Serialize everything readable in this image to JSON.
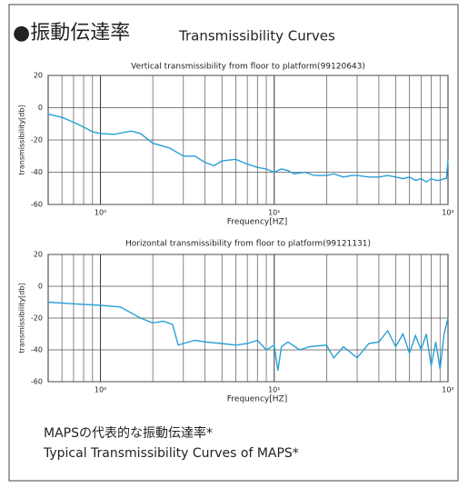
{
  "header": {
    "title": "●振動伝達率",
    "subtitle": "Transmissibility Curves"
  },
  "chart_data": [
    {
      "type": "line",
      "title": "Vertical transmissibility from floor to platform(99120643)",
      "x_label": "Frequency[HZ]",
      "y_label": "transmissibility[db]",
      "color": "#2a9fd6",
      "log_x": true,
      "grid": true,
      "xlim": [
        0.5,
        100
      ],
      "ylim": [
        -60,
        20
      ],
      "xticks": [
        {
          "value": 1,
          "label": "10⁰"
        },
        {
          "value": 10,
          "label": "10¹"
        },
        {
          "value": 100,
          "label": "10²"
        }
      ],
      "x_minor_grid": [
        0.6,
        0.7,
        0.8,
        0.9,
        2,
        3,
        4,
        5,
        6,
        7,
        8,
        9,
        20,
        30,
        40,
        50,
        60,
        70,
        80,
        90
      ],
      "yticks": [
        -60,
        -40,
        -20,
        0,
        20
      ],
      "x": [
        0.5,
        0.6,
        0.7,
        0.8,
        0.9,
        1.0,
        1.2,
        1.5,
        1.7,
        2,
        2.5,
        3,
        3.5,
        4,
        4.5,
        5,
        6,
        7,
        8,
        9,
        10,
        11,
        12,
        13,
        15,
        17,
        20,
        22,
        25,
        28,
        30,
        35,
        40,
        45,
        50,
        55,
        60,
        65,
        70,
        75,
        80,
        85,
        90,
        95,
        98,
        100
      ],
      "values": [
        -4,
        -6,
        -9,
        -12,
        -15,
        -16,
        -16.5,
        -14.5,
        -16,
        -22,
        -25,
        -30,
        -30,
        -34,
        -36,
        -33,
        -32,
        -35,
        -37,
        -38,
        -40,
        -38,
        -39,
        -41,
        -40,
        -42,
        -42,
        -41,
        -43,
        -42,
        -42,
        -43,
        -43,
        -42,
        -43,
        -44,
        -43,
        -45,
        -44,
        -46,
        -44,
        -45,
        -45,
        -44,
        -44,
        -32
      ]
    },
    {
      "type": "line",
      "title": "Horizontal transmissibility from floor to platform(99121131)",
      "x_label": "Frequency[HZ]",
      "y_label": "transmissibility[db]",
      "color": "#2a9fd6",
      "log_x": true,
      "grid": true,
      "xlim": [
        0.5,
        100
      ],
      "ylim": [
        -60,
        20
      ],
      "xticks": [
        {
          "value": 1,
          "label": "10⁰"
        },
        {
          "value": 10,
          "label": "10¹"
        },
        {
          "value": 100,
          "label": "10²"
        }
      ],
      "x_minor_grid": [
        0.6,
        0.7,
        0.8,
        0.9,
        2,
        3,
        4,
        5,
        6,
        7,
        8,
        9,
        20,
        30,
        40,
        50,
        60,
        70,
        80,
        90
      ],
      "yticks": [
        -60,
        -40,
        -20,
        0,
        20
      ],
      "x": [
        0.5,
        0.7,
        1.0,
        1.3,
        1.7,
        2,
        2.3,
        2.6,
        2.8,
        3,
        3.5,
        4,
        5,
        6,
        7,
        8,
        9,
        10,
        10.5,
        11,
        12,
        14,
        16,
        20,
        22,
        25,
        30,
        35,
        40,
        45,
        50,
        55,
        60,
        65,
        70,
        75,
        80,
        85,
        90,
        95,
        100
      ],
      "values": [
        -10,
        -11,
        -12,
        -13,
        -20,
        -23,
        -22,
        -24,
        -37,
        -36,
        -34,
        -35,
        -36,
        -37,
        -36,
        -34,
        -40,
        -37,
        -53,
        -38,
        -35,
        -40,
        -38,
        -37,
        -45,
        -38,
        -45,
        -36,
        -35,
        -28,
        -38,
        -30,
        -42,
        -31,
        -40,
        -30,
        -50,
        -35,
        -52,
        -30,
        -20
      ]
    }
  ],
  "footer": {
    "line1": "MAPSの代表的な振動伝達率*",
    "line2": "Typical Transmissibility Curves of MAPS*"
  }
}
